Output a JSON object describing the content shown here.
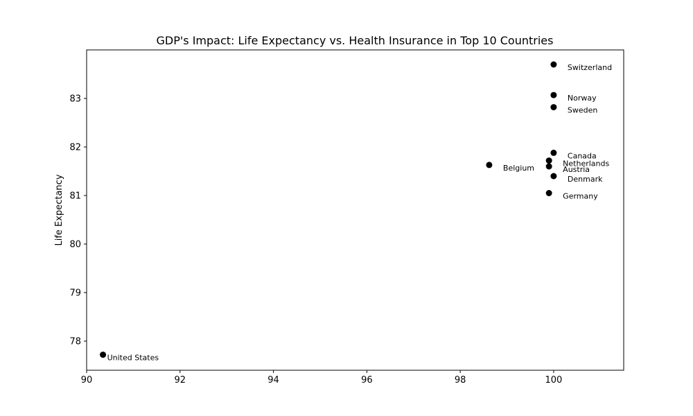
{
  "chart_data": {
    "type": "scatter",
    "title": "GDP's Impact: Life Expectancy vs. Health Insurance in Top 10 Countries",
    "xlabel": "",
    "ylabel": "Life Expectancy",
    "xlim": [
      90,
      101.5
    ],
    "ylim": [
      77.4,
      84.0
    ],
    "xticks": [
      "90",
      "92",
      "94",
      "96",
      "98",
      "100"
    ],
    "yticks": [
      "78",
      "79",
      "80",
      "81",
      "82",
      "83"
    ],
    "grid": false,
    "marker_color": "#000000",
    "points": [
      {
        "label": "United States",
        "x": 90.35,
        "y": 77.72
      },
      {
        "label": "Switzerland",
        "x": 100.0,
        "y": 83.7
      },
      {
        "label": "Norway",
        "x": 100.0,
        "y": 83.07
      },
      {
        "label": "Sweden",
        "x": 100.0,
        "y": 82.82
      },
      {
        "label": "Canada",
        "x": 100.0,
        "y": 81.88
      },
      {
        "label": "Netherlands",
        "x": 99.9,
        "y": 81.72
      },
      {
        "label": "Belgium",
        "x": 98.62,
        "y": 81.63
      },
      {
        "label": "Austria",
        "x": 99.9,
        "y": 81.6
      },
      {
        "label": "Denmark",
        "x": 100.0,
        "y": 81.4
      },
      {
        "label": "Germany",
        "x": 99.9,
        "y": 81.05
      }
    ]
  }
}
